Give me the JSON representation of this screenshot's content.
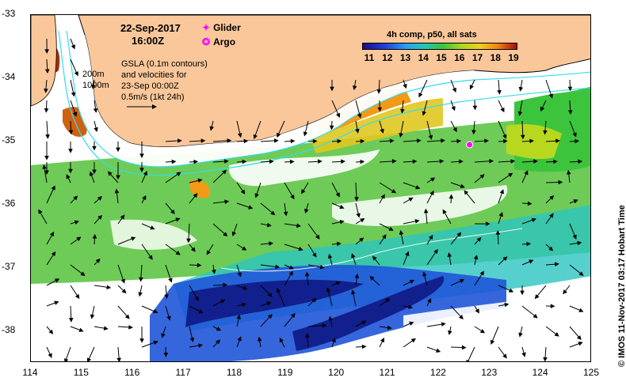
{
  "map": {
    "date_label": "22-Sep-2017",
    "time_label": "16:00Z",
    "legend": {
      "glider": {
        "symbol": "✦",
        "label": "Glider",
        "color": "#ff00ff"
      },
      "argo": {
        "symbol": "✪",
        "label": "Argo",
        "color": "#ff00ff"
      }
    },
    "contour_labels": {
      "c200": "200m",
      "c1000": "1000m"
    },
    "gsla_note": "GSLA (0.1m contours)\nand velocities for\n23-Sep 00:00Z\n0.5m/s (1kt 24h)",
    "colorbar": {
      "title": "4h comp, p50, all sats",
      "ticks": [
        "11",
        "12",
        "13",
        "14",
        "15",
        "16",
        "17",
        "18",
        "19"
      ]
    },
    "axes": {
      "lon_ticks": [
        "114",
        "115",
        "116",
        "117",
        "118",
        "119",
        "120",
        "121",
        "122",
        "123",
        "124",
        "125"
      ],
      "lat_ticks": [
        "-33",
        "-34",
        "-35",
        "-36",
        "-37",
        "-38"
      ],
      "lon_range": [
        114,
        125
      ],
      "lat_range": [
        -38.5,
        -33
      ]
    },
    "credit": "©  IMOS 11-Nov-2017 03:17 Hobart Time",
    "glider_position": {
      "lon": 122.6,
      "lat": -35.05
    },
    "colors": {
      "land": "#f9c79a",
      "shelf_contour": "#33ddee",
      "arrows": "#000000"
    }
  }
}
